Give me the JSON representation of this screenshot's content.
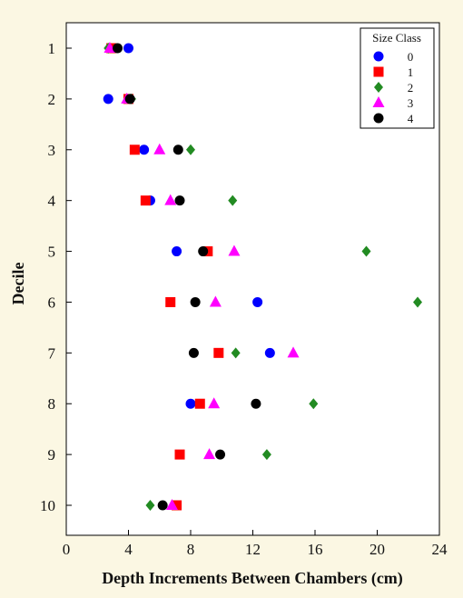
{
  "chart_data": {
    "type": "scatter",
    "xlabel": "Depth Increments Between Chambers (cm)",
    "ylabel": "Decile",
    "xlim": [
      0,
      24
    ],
    "ylim": [
      1,
      10
    ],
    "y_reversed": true,
    "x_ticks": [
      0,
      4,
      8,
      12,
      16,
      20,
      24
    ],
    "y_ticks": [
      1,
      2,
      3,
      4,
      5,
      6,
      7,
      8,
      9,
      10
    ],
    "grid": false,
    "legend": {
      "title": "Size Class",
      "position": "top-right"
    },
    "y": [
      1,
      2,
      3,
      4,
      5,
      6,
      7,
      8,
      9,
      10
    ],
    "series": [
      {
        "name": "0",
        "marker": "circle",
        "color": "#0000ff",
        "x": [
          4.0,
          2.7,
          5.0,
          5.4,
          7.1,
          12.3,
          13.1,
          8.0,
          null,
          null
        ]
      },
      {
        "name": "1",
        "marker": "square",
        "color": "#ff0000",
        "x": [
          2.9,
          4.0,
          4.4,
          5.1,
          9.1,
          6.7,
          9.8,
          8.6,
          7.3,
          7.1
        ]
      },
      {
        "name": "2",
        "marker": "diamond",
        "color": "#228b22",
        "x": [
          2.7,
          4.2,
          8.0,
          10.7,
          19.3,
          22.6,
          10.9,
          15.9,
          12.9,
          5.4
        ]
      },
      {
        "name": "3",
        "marker": "triangle",
        "color": "#ff00ff",
        "x": [
          2.8,
          3.9,
          6.0,
          6.7,
          10.8,
          9.6,
          14.6,
          9.5,
          9.2,
          6.8
        ]
      },
      {
        "name": "4",
        "marker": "circle",
        "color": "#000000",
        "x": [
          3.3,
          4.1,
          7.2,
          7.3,
          8.8,
          8.3,
          8.2,
          12.2,
          9.9,
          6.2
        ]
      }
    ]
  }
}
